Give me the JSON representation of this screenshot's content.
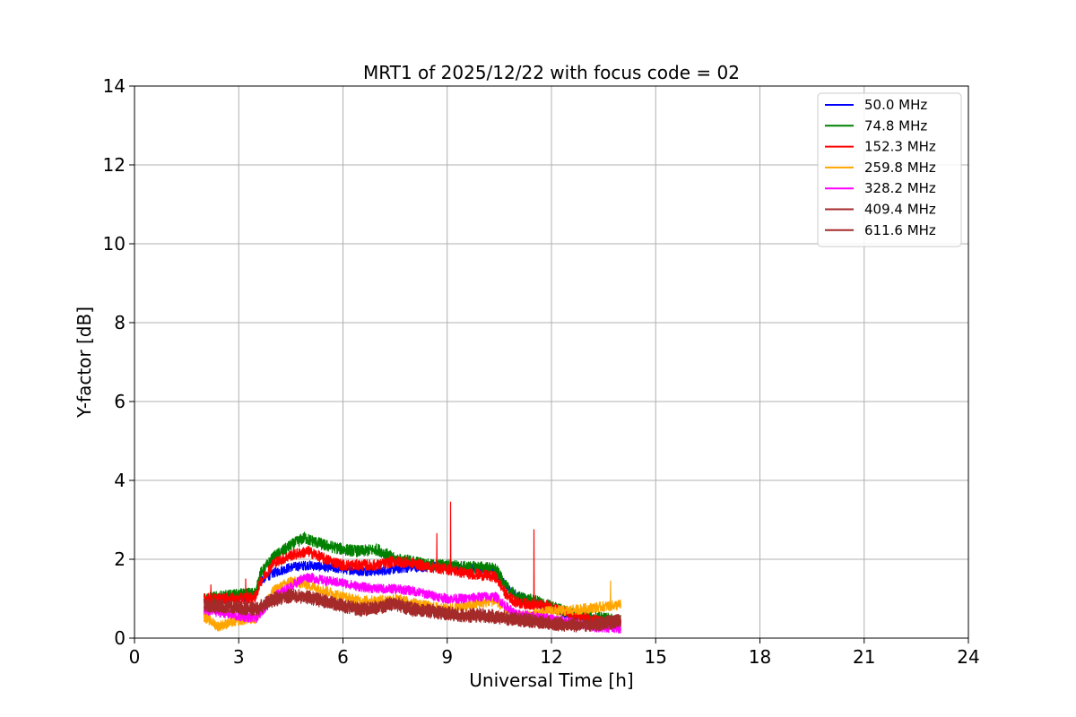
{
  "chart_data": {
    "type": "line",
    "title": "MRT1 of 2025/12/22 with focus code = 02",
    "xlabel": "Universal Time [h]",
    "ylabel": "Y-factor [dB]",
    "xlim": [
      0,
      24
    ],
    "ylim": [
      0,
      14
    ],
    "xticks": [
      0,
      3,
      6,
      9,
      12,
      15,
      18,
      21,
      24
    ],
    "yticks": [
      0,
      2,
      4,
      6,
      8,
      10,
      12,
      14
    ],
    "grid": true,
    "legend_position": "top-right",
    "series": [
      {
        "name": " 50.0 MHz",
        "color": "#0000ff",
        "noise": 0.12,
        "points": [
          [
            2.0,
            0.95
          ],
          [
            3.0,
            1.05
          ],
          [
            3.5,
            1.1
          ],
          [
            3.6,
            1.45
          ],
          [
            4.0,
            1.65
          ],
          [
            4.5,
            1.8
          ],
          [
            5.0,
            1.85
          ],
          [
            5.5,
            1.8
          ],
          [
            6.0,
            1.75
          ],
          [
            6.5,
            1.7
          ],
          [
            7.0,
            1.7
          ],
          [
            7.5,
            1.75
          ],
          [
            8.0,
            1.8
          ],
          [
            8.5,
            1.8
          ],
          [
            9.0,
            1.85
          ],
          [
            9.5,
            1.75
          ],
          [
            10.0,
            1.75
          ],
          [
            10.4,
            1.7
          ],
          [
            10.7,
            1.3
          ],
          [
            11.0,
            1.05
          ],
          [
            11.5,
            0.9
          ],
          [
            12.0,
            0.75
          ],
          [
            12.5,
            0.6
          ],
          [
            13.0,
            0.5
          ],
          [
            13.5,
            0.45
          ],
          [
            14.0,
            0.45
          ]
        ]
      },
      {
        "name": " 74.8 MHz",
        "color": "#008000",
        "noise": 0.15,
        "points": [
          [
            2.0,
            1.0
          ],
          [
            3.0,
            1.1
          ],
          [
            3.5,
            1.15
          ],
          [
            3.6,
            1.6
          ],
          [
            4.0,
            2.05
          ],
          [
            4.5,
            2.35
          ],
          [
            4.9,
            2.55
          ],
          [
            5.0,
            2.5
          ],
          [
            5.5,
            2.35
          ],
          [
            6.0,
            2.25
          ],
          [
            6.5,
            2.2
          ],
          [
            7.0,
            2.25
          ],
          [
            7.5,
            2.0
          ],
          [
            8.0,
            1.95
          ],
          [
            8.5,
            1.85
          ],
          [
            9.0,
            1.85
          ],
          [
            9.5,
            1.8
          ],
          [
            10.0,
            1.8
          ],
          [
            10.4,
            1.75
          ],
          [
            10.7,
            1.3
          ],
          [
            11.0,
            1.05
          ],
          [
            11.5,
            0.95
          ],
          [
            12.0,
            0.8
          ],
          [
            12.5,
            0.65
          ],
          [
            13.0,
            0.55
          ],
          [
            13.5,
            0.5
          ],
          [
            14.0,
            0.45
          ]
        ]
      },
      {
        "name": " 152.3 MHz",
        "color": "#ff0000",
        "noise": 0.14,
        "points": [
          [
            2.0,
            1.0
          ],
          [
            3.0,
            1.0
          ],
          [
            3.5,
            1.05
          ],
          [
            3.6,
            1.4
          ],
          [
            4.0,
            1.9
          ],
          [
            4.5,
            2.1
          ],
          [
            5.0,
            2.2
          ],
          [
            5.5,
            2.0
          ],
          [
            6.0,
            1.85
          ],
          [
            6.5,
            1.85
          ],
          [
            7.0,
            1.85
          ],
          [
            7.5,
            1.95
          ],
          [
            8.0,
            1.9
          ],
          [
            8.5,
            1.8
          ],
          [
            9.0,
            1.75
          ],
          [
            9.5,
            1.65
          ],
          [
            10.0,
            1.6
          ],
          [
            10.4,
            1.55
          ],
          [
            10.7,
            1.1
          ],
          [
            11.0,
            0.9
          ],
          [
            11.5,
            0.85
          ],
          [
            12.0,
            0.8
          ],
          [
            12.5,
            0.6
          ],
          [
            13.0,
            0.5
          ],
          [
            13.5,
            0.4
          ],
          [
            14.0,
            0.35
          ]
        ],
        "spikes": [
          [
            8.7,
            2.65
          ],
          [
            9.1,
            3.45
          ],
          [
            11.5,
            2.75
          ],
          [
            3.2,
            1.5
          ],
          [
            2.2,
            1.35
          ]
        ]
      },
      {
        "name": " 259.8 MHz",
        "color": "#ffa500",
        "noise": 0.13,
        "points": [
          [
            2.0,
            0.55
          ],
          [
            2.4,
            0.3
          ],
          [
            3.0,
            0.45
          ],
          [
            3.5,
            0.5
          ],
          [
            4.0,
            1.2
          ],
          [
            4.5,
            1.45
          ],
          [
            5.0,
            1.35
          ],
          [
            5.5,
            1.2
          ],
          [
            6.0,
            1.05
          ],
          [
            6.5,
            0.95
          ],
          [
            7.0,
            0.95
          ],
          [
            7.5,
            1.0
          ],
          [
            8.0,
            0.9
          ],
          [
            8.5,
            0.8
          ],
          [
            9.0,
            0.75
          ],
          [
            9.5,
            0.8
          ],
          [
            10.0,
            0.9
          ],
          [
            10.4,
            0.95
          ],
          [
            10.7,
            0.7
          ],
          [
            11.0,
            0.55
          ],
          [
            11.5,
            0.6
          ],
          [
            12.0,
            0.7
          ],
          [
            12.5,
            0.7
          ],
          [
            13.0,
            0.75
          ],
          [
            13.5,
            0.8
          ],
          [
            14.0,
            0.85
          ]
        ],
        "spikes": [
          [
            13.7,
            1.45
          ]
        ]
      },
      {
        "name": " 328.2 MHz",
        "color": "#ff00ff",
        "noise": 0.12,
        "points": [
          [
            2.0,
            0.7
          ],
          [
            2.5,
            0.65
          ],
          [
            3.0,
            0.55
          ],
          [
            3.5,
            0.5
          ],
          [
            4.0,
            1.05
          ],
          [
            4.5,
            1.3
          ],
          [
            4.8,
            1.5
          ],
          [
            5.0,
            1.55
          ],
          [
            5.5,
            1.45
          ],
          [
            6.0,
            1.4
          ],
          [
            6.5,
            1.3
          ],
          [
            7.0,
            1.25
          ],
          [
            7.5,
            1.25
          ],
          [
            8.0,
            1.2
          ],
          [
            8.5,
            1.1
          ],
          [
            9.0,
            1.0
          ],
          [
            9.5,
            1.0
          ],
          [
            10.0,
            1.05
          ],
          [
            10.4,
            1.05
          ],
          [
            10.7,
            0.8
          ],
          [
            11.0,
            0.6
          ],
          [
            11.5,
            0.55
          ],
          [
            12.0,
            0.5
          ],
          [
            12.5,
            0.4
          ],
          [
            13.0,
            0.3
          ],
          [
            13.5,
            0.25
          ],
          [
            14.0,
            0.25
          ]
        ]
      },
      {
        "name": " 409.4 MHz",
        "color": "#a52a2a",
        "noise": 0.15,
        "points": [
          [
            2.0,
            0.8
          ],
          [
            3.0,
            0.75
          ],
          [
            3.5,
            0.7
          ],
          [
            4.0,
            0.95
          ],
          [
            4.5,
            1.05
          ],
          [
            5.0,
            1.0
          ],
          [
            5.5,
            0.9
          ],
          [
            6.0,
            0.8
          ],
          [
            6.5,
            0.7
          ],
          [
            7.0,
            0.75
          ],
          [
            7.5,
            0.85
          ],
          [
            8.0,
            0.7
          ],
          [
            8.5,
            0.65
          ],
          [
            9.0,
            0.6
          ],
          [
            9.5,
            0.55
          ],
          [
            10.0,
            0.55
          ],
          [
            10.5,
            0.5
          ],
          [
            11.0,
            0.45
          ],
          [
            11.5,
            0.4
          ],
          [
            12.0,
            0.35
          ],
          [
            12.5,
            0.3
          ],
          [
            13.0,
            0.3
          ],
          [
            13.5,
            0.35
          ],
          [
            14.0,
            0.4
          ]
        ]
      },
      {
        "name": " 611.6 MHz",
        "color": "#a52a2a",
        "noise": 0.16,
        "points": [
          [
            2.0,
            0.85
          ],
          [
            3.0,
            0.8
          ],
          [
            3.5,
            0.75
          ],
          [
            4.0,
            1.0
          ],
          [
            4.5,
            1.1
          ],
          [
            5.0,
            1.05
          ],
          [
            5.5,
            0.95
          ],
          [
            6.0,
            0.85
          ],
          [
            6.5,
            0.75
          ],
          [
            7.0,
            0.8
          ],
          [
            7.5,
            0.9
          ],
          [
            8.0,
            0.75
          ],
          [
            8.5,
            0.7
          ],
          [
            9.0,
            0.65
          ],
          [
            9.5,
            0.6
          ],
          [
            10.0,
            0.6
          ],
          [
            10.5,
            0.55
          ],
          [
            11.0,
            0.5
          ],
          [
            11.5,
            0.45
          ],
          [
            12.0,
            0.4
          ],
          [
            12.5,
            0.35
          ],
          [
            13.0,
            0.35
          ],
          [
            13.5,
            0.4
          ],
          [
            14.0,
            0.45
          ]
        ]
      }
    ]
  }
}
